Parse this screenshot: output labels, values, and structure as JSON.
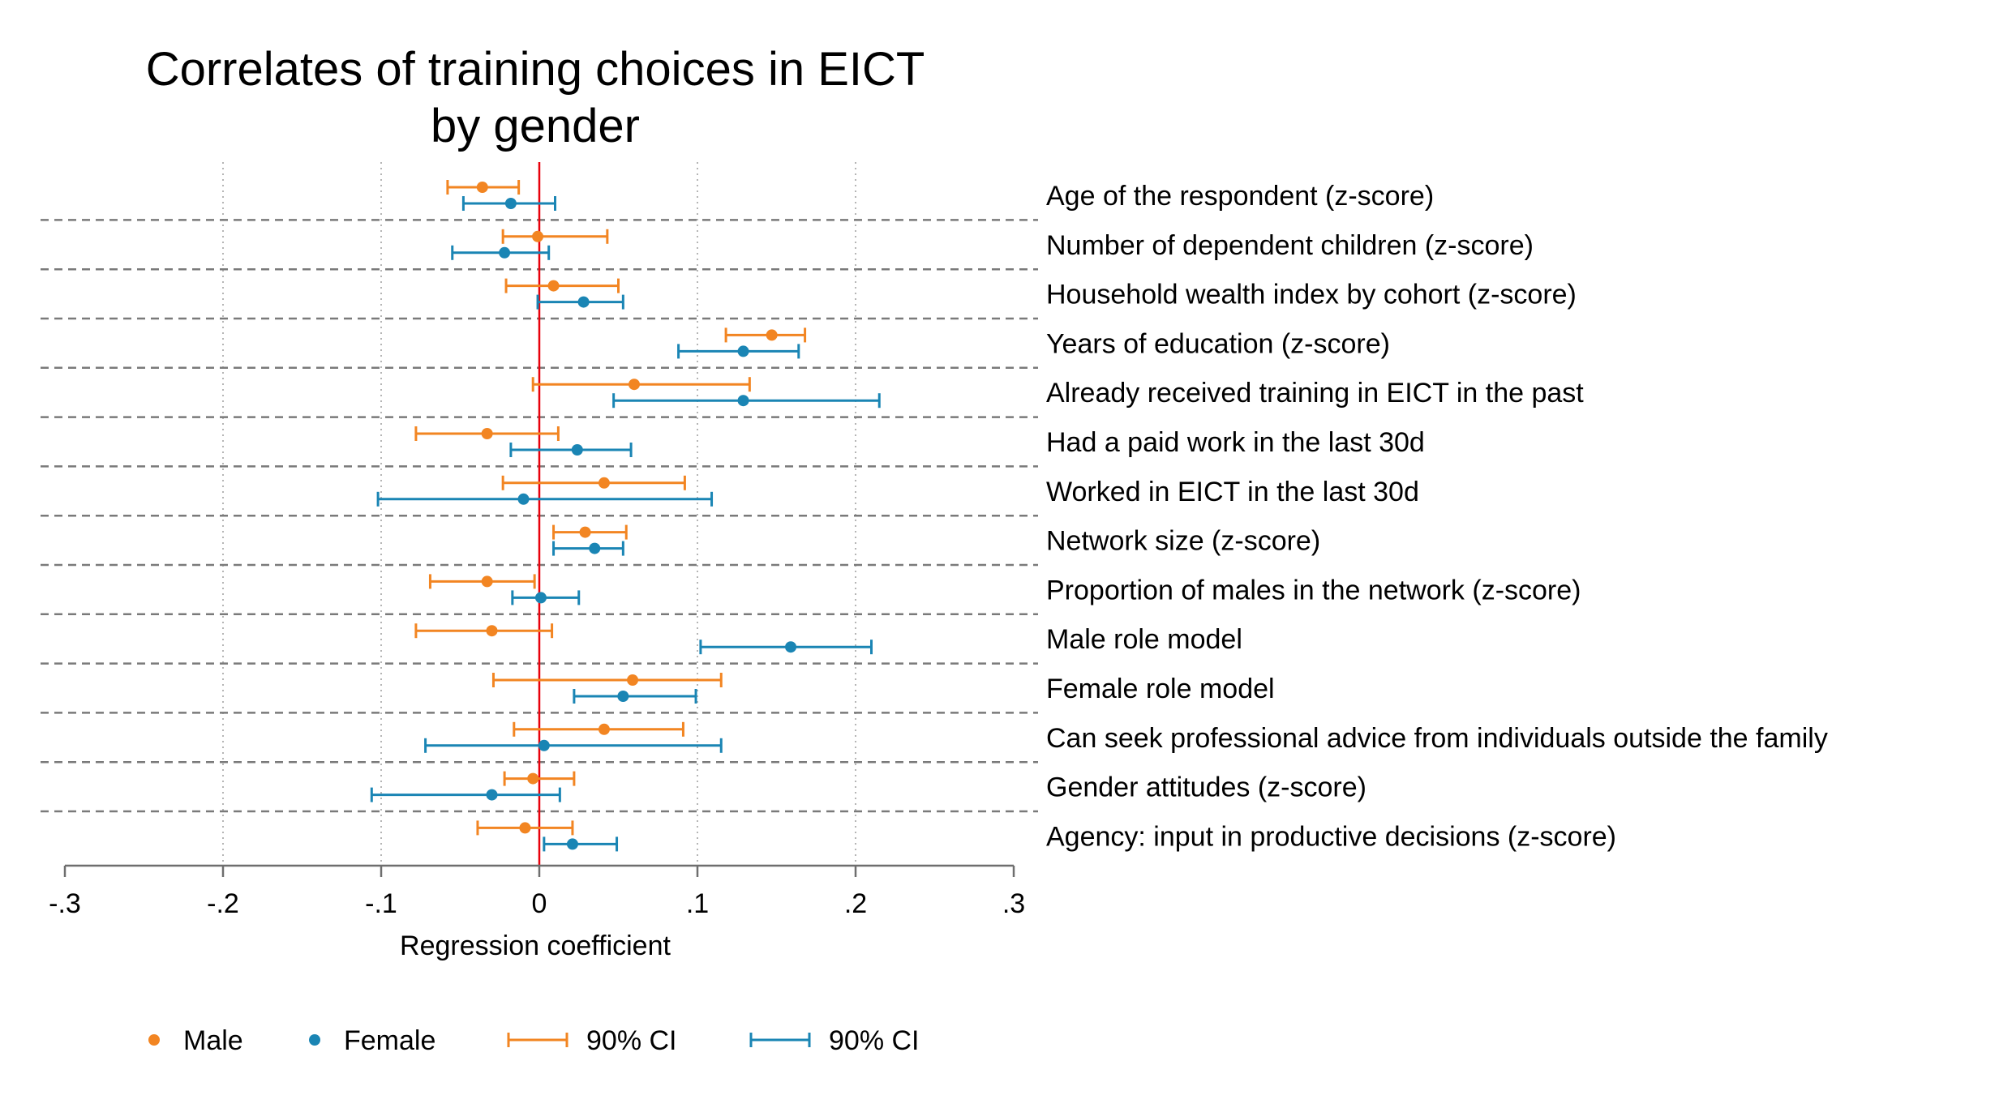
{
  "chart_data": {
    "type": "scatter",
    "title_lines": [
      "Correlates of training choices in EICT",
      "by gender"
    ],
    "xlabel": "Regression coefficient",
    "xlim": [
      -0.3,
      0.3
    ],
    "x_ticks": [
      -0.3,
      -0.2,
      -0.1,
      0,
      0.1,
      0.2,
      0.3
    ],
    "x_tick_labels": [
      "-.3",
      "-.2",
      "-.1",
      "0",
      ".1",
      ".2",
      ".3"
    ],
    "reference_line": {
      "x": 0,
      "color": "#e8000b"
    },
    "grid": {
      "vertical": true,
      "style": "dotted",
      "row_separators": "dashed"
    },
    "categories": [
      "Age of the respondent (z-score)",
      "Number of dependent children (z-score)",
      "Household wealth index by cohort (z-score)",
      "Years of education (z-score)",
      "Already received training in EICT in the past",
      "Had a paid work in the last 30d",
      "Worked in EICT in the last 30d",
      "Network size (z-score)",
      "Proportion of males in the network (z-score)",
      "Male role model",
      "Female role model",
      "Can seek professional advice from individuals outside the family",
      "Gender attitudes (z-score)",
      "Agency: input in productive decisions (z-score)"
    ],
    "series": [
      {
        "name": "Male",
        "color": "#f28522",
        "estimate": [
          -0.036,
          -0.001,
          0.009,
          0.147,
          0.06,
          -0.033,
          0.041,
          0.029,
          -0.033,
          -0.03,
          0.059,
          0.041,
          -0.004,
          -0.009
        ],
        "ci_low": [
          -0.058,
          -0.023,
          -0.021,
          0.118,
          -0.004,
          -0.078,
          -0.023,
          0.009,
          -0.069,
          -0.078,
          -0.029,
          -0.016,
          -0.022,
          -0.039
        ],
        "ci_high": [
          -0.013,
          0.043,
          0.05,
          0.168,
          0.133,
          0.012,
          0.092,
          0.055,
          -0.003,
          0.008,
          0.115,
          0.091,
          0.022,
          0.021
        ]
      },
      {
        "name": "Female",
        "color": "#1a85b4",
        "estimate": [
          -0.018,
          -0.022,
          0.028,
          0.129,
          0.129,
          0.024,
          -0.01,
          0.035,
          0.001,
          0.159,
          0.053,
          0.003,
          -0.03,
          0.021
        ],
        "ci_low": [
          -0.048,
          -0.055,
          -0.001,
          0.088,
          0.047,
          -0.018,
          -0.102,
          0.009,
          -0.017,
          0.102,
          0.022,
          -0.072,
          -0.106,
          0.003
        ],
        "ci_high": [
          0.01,
          0.006,
          0.053,
          0.164,
          0.215,
          0.058,
          0.109,
          0.053,
          0.025,
          0.21,
          0.099,
          0.115,
          0.013,
          0.049
        ]
      }
    ],
    "legend": {
      "placement": "bottom",
      "entries": [
        {
          "label": "Male",
          "kind": "marker",
          "color": "#f28522"
        },
        {
          "label": "Female",
          "kind": "marker",
          "color": "#1a85b4"
        },
        {
          "label": "90% CI",
          "kind": "interval",
          "color": "#f28522"
        },
        {
          "label": "90% CI",
          "kind": "interval",
          "color": "#1a85b4"
        }
      ]
    }
  }
}
